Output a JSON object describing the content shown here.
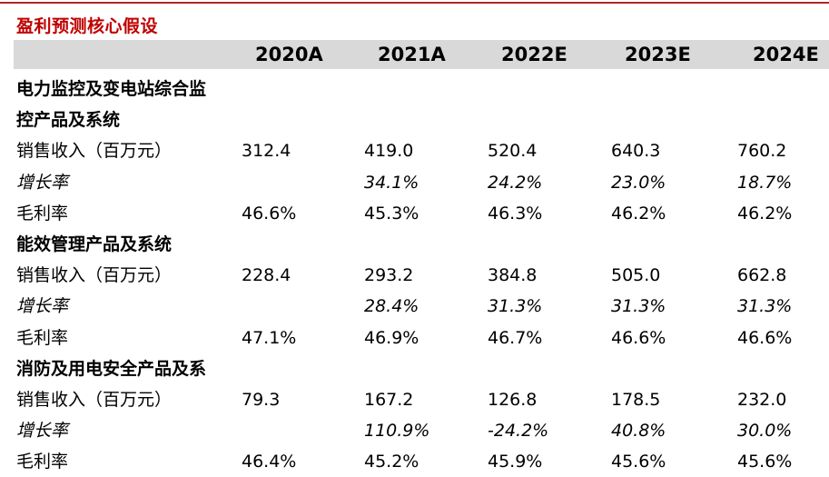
{
  "title": "盈利预测核心假设",
  "columns": [
    "2020A",
    "2021A",
    "2022E",
    "2023E",
    "2024E"
  ],
  "rows": [
    {
      "type": "section",
      "label": "电力监控及变电站综合监",
      "values": [
        "",
        "",
        "",
        "",
        ""
      ]
    },
    {
      "type": "section",
      "label": "控产品及系统",
      "values": [
        "",
        "",
        "",
        "",
        ""
      ]
    },
    {
      "type": "data",
      "label": "销售收入（百万元）",
      "values": [
        "312.4",
        "419.0",
        "520.4",
        "640.3",
        "760.2"
      ]
    },
    {
      "type": "growth",
      "label": "增长率",
      "values": [
        "",
        "34.1%",
        "24.2%",
        "23.0%",
        "18.7%"
      ]
    },
    {
      "type": "data",
      "label": "毛利率",
      "values": [
        "46.6%",
        "45.3%",
        "46.3%",
        "46.2%",
        "46.2%"
      ]
    },
    {
      "type": "section",
      "label": "能效管理产品及系统",
      "values": [
        "",
        "",
        "",
        "",
        ""
      ]
    },
    {
      "type": "data",
      "label": "销售收入（百万元）",
      "values": [
        "228.4",
        "293.2",
        "384.8",
        "505.0",
        "662.8"
      ]
    },
    {
      "type": "growth",
      "label": "增长率",
      "values": [
        "",
        "28.4%",
        "31.3%",
        "31.3%",
        "31.3%"
      ]
    },
    {
      "type": "data",
      "label": "毛利率",
      "values": [
        "47.1%",
        "46.9%",
        "46.7%",
        "46.6%",
        "46.6%"
      ]
    },
    {
      "type": "section",
      "label": "消防及用电安全产品及系",
      "values": [
        "",
        "",
        "",
        "",
        ""
      ]
    },
    {
      "type": "data",
      "label": "销售收入（百万元）",
      "values": [
        "79.3",
        "167.2",
        "126.8",
        "178.5",
        "232.0"
      ]
    },
    {
      "type": "growth",
      "label": "增长率",
      "values": [
        "",
        "110.9%",
        "-24.2%",
        "40.8%",
        "30.0%"
      ]
    },
    {
      "type": "data",
      "label": "毛利率",
      "values": [
        "46.4%",
        "45.2%",
        "45.9%",
        "45.6%",
        "45.6%"
      ]
    }
  ]
}
